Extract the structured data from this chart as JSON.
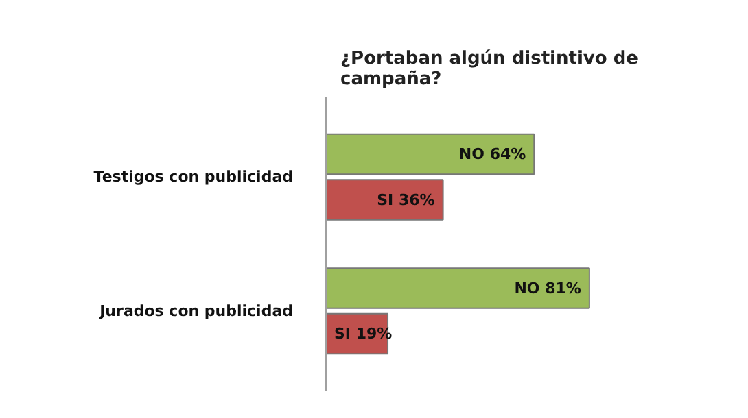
{
  "chart_data": {
    "type": "bar",
    "orientation": "horizontal",
    "title": "¿Portaban algún distintivo de campaña?",
    "categories": [
      "Testigos con publicidad",
      "Jurados con publicidad"
    ],
    "series": [
      {
        "color": "#9bbb59",
        "values": [
          64,
          81
        ],
        "value_labels": [
          "NO 64%",
          "NO 81%"
        ]
      },
      {
        "color": "#c0504d",
        "values": [
          36,
          19
        ],
        "value_labels": [
          "SI 36%",
          "SI 19%"
        ]
      }
    ]
  }
}
